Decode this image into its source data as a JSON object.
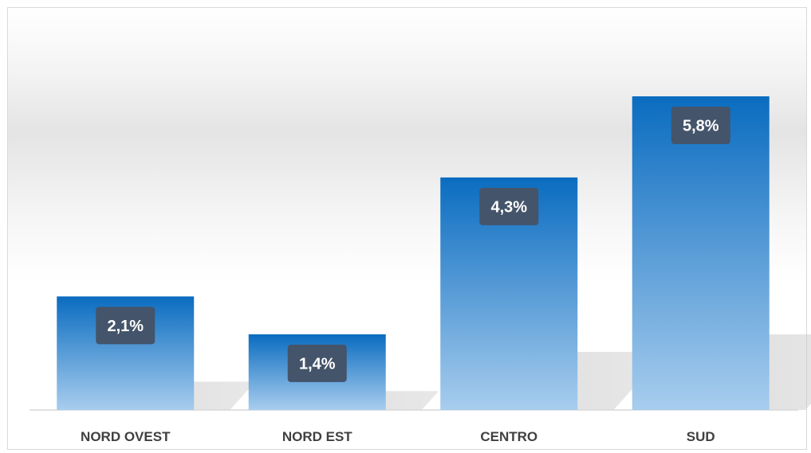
{
  "chart_data": {
    "type": "bar",
    "categories": [
      "NORD OVEST",
      "NORD EST",
      "CENTRO",
      "SUD"
    ],
    "values": [
      2.1,
      1.4,
      4.3,
      5.8
    ],
    "value_labels": [
      "2,1%",
      "1,4%",
      "4,3%",
      "5,8%"
    ],
    "title": "",
    "xlabel": "",
    "ylabel": "",
    "ylim": [
      0,
      6.3
    ],
    "grid": false,
    "legend": "none"
  },
  "colors": {
    "bar_top": "#0a6cc0",
    "bar_bottom": "#a8cdee",
    "label_box": "#44546a",
    "axis": "#d9d9d9",
    "category_text": "#404040"
  }
}
